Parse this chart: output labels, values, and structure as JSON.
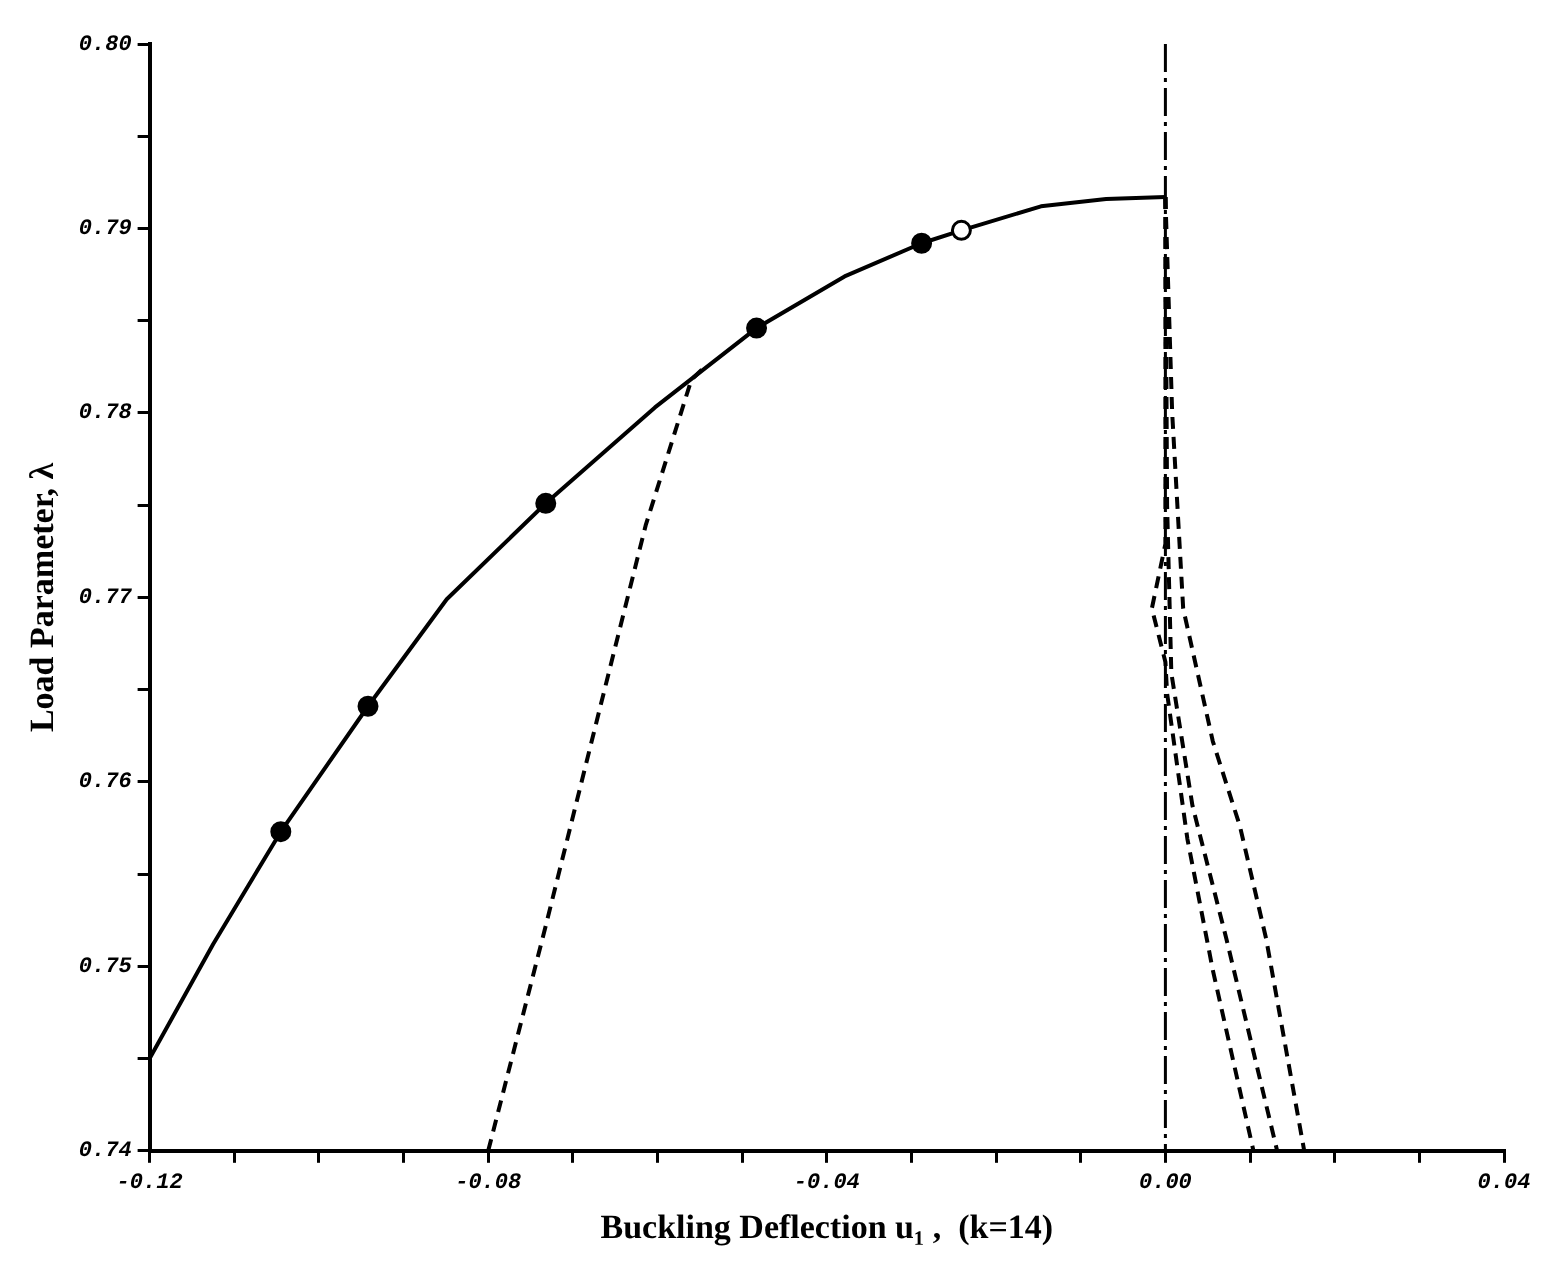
{
  "chart_data": {
    "type": "line",
    "xlabel": "Buckling Deflection u₁ ,  (k=14)",
    "ylabel": "Load Parameter, λ",
    "xlim": [
      -0.12,
      0.04
    ],
    "ylim": [
      0.74,
      0.8
    ],
    "xticks": [
      {
        "value": -0.12,
        "label": "-0.12"
      },
      {
        "value": -0.11,
        "label": null
      },
      {
        "value": -0.1,
        "label": null
      },
      {
        "value": -0.09,
        "label": null
      },
      {
        "value": -0.08,
        "label": "-0.08"
      },
      {
        "value": -0.07,
        "label": null
      },
      {
        "value": -0.06,
        "label": null
      },
      {
        "value": -0.05,
        "label": null
      },
      {
        "value": -0.04,
        "label": "-0.04"
      },
      {
        "value": -0.03,
        "label": null
      },
      {
        "value": -0.02,
        "label": null
      },
      {
        "value": -0.01,
        "label": null
      },
      {
        "value": 0,
        "label": "0.00"
      },
      {
        "value": 0.01,
        "label": null
      },
      {
        "value": 0.02,
        "label": null
      },
      {
        "value": 0.03,
        "label": null
      },
      {
        "value": 0.04,
        "label": "0.04"
      }
    ],
    "yticks": [
      {
        "value": 0.74,
        "label": "0.74"
      },
      {
        "value": 0.745,
        "label": null
      },
      {
        "value": 0.75,
        "label": "0.75"
      },
      {
        "value": 0.755,
        "label": null
      },
      {
        "value": 0.76,
        "label": "0.76"
      },
      {
        "value": 0.765,
        "label": null
      },
      {
        "value": 0.77,
        "label": "0.77"
      },
      {
        "value": 0.775,
        "label": null
      },
      {
        "value": 0.78,
        "label": "0.78"
      },
      {
        "value": 0.785,
        "label": null
      },
      {
        "value": 0.79,
        "label": "0.79"
      },
      {
        "value": 0.795,
        "label": null
      },
      {
        "value": 0.8,
        "label": "0.80"
      }
    ],
    "grid": false,
    "legend": false,
    "ref_lines": [
      {
        "axis": "x",
        "value": 0,
        "label": null,
        "color": "#000000",
        "line_style": "dashed"
      }
    ],
    "series": [
      {
        "type": "line",
        "color": "#000000",
        "marker": "none",
        "line_style": "solid",
        "x": [
          -0.12,
          -0.1125,
          -0.1045,
          -0.0942,
          -0.0849,
          -0.0732,
          -0.0603,
          -0.0483,
          -0.0379,
          -0.0288,
          -0.0241,
          -0.0147,
          -0.007,
          0
        ],
        "values": [
          0.745,
          0.7512,
          0.7573,
          0.7641,
          0.7699,
          0.7751,
          0.7803,
          0.7846,
          0.7874,
          0.7892,
          0.7899,
          0.7912,
          0.7916,
          0.7917
        ]
      },
      {
        "type": "scatter",
        "color": "#000000",
        "colors": [
          "#000000",
          "#000000",
          "#000000",
          "#000000",
          "#000000",
          "#ffffff"
        ],
        "marker": "circle",
        "x": [
          -0.1045,
          -0.0942,
          -0.0732,
          -0.0483,
          -0.0288,
          -0.0241
        ],
        "values": [
          0.7573,
          0.7641,
          0.7751,
          0.7846,
          0.7892,
          0.7899
        ]
      },
      {
        "type": "line",
        "color": "#000000",
        "marker": "none",
        "line_style": "dashed",
        "x": [
          -0.08,
          -0.0732,
          -0.0668,
          -0.0614,
          -0.056,
          -0.0544
        ],
        "values": [
          0.74,
          0.7522,
          0.764,
          0.7739,
          0.7818,
          0.7825
        ]
      },
      {
        "type": "line",
        "color": "#000000",
        "marker": "none",
        "line_style": "dashed",
        "x": [
          0,
          0.0008,
          0.0021,
          0.0056,
          0.0088,
          0.0119,
          0.0164
        ],
        "values": [
          0.7917,
          0.78,
          0.7694,
          0.7622,
          0.7576,
          0.7515,
          0.74
        ]
      },
      {
        "type": "line",
        "color": "#000000",
        "marker": "none",
        "line_style": "dashed",
        "x": [
          0,
          0.0002,
          0.0007,
          0.0032,
          0.0072,
          0.0132
        ],
        "values": [
          0.7917,
          0.775,
          0.7659,
          0.7587,
          0.7515,
          0.74
        ]
      },
      {
        "type": "line",
        "color": "#000000",
        "marker": "none",
        "line_style": "dashed",
        "x": [
          0,
          0,
          -0.0016,
          0,
          0.0002,
          0.0026,
          0.0056,
          0.0104
        ],
        "values": [
          0.7917,
          0.7729,
          0.7694,
          0.7665,
          0.7648,
          0.7569,
          0.7498,
          0.74
        ]
      }
    ]
  }
}
